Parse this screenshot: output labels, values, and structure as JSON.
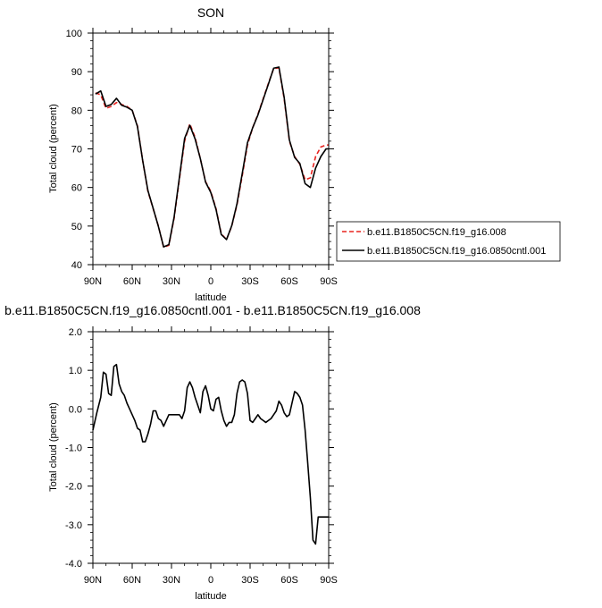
{
  "chart_data": [
    {
      "type": "line",
      "title": "SON",
      "xlabel": "latitude",
      "ylabel": "Total cloud (percent)",
      "xlim": [
        90,
        -90
      ],
      "ylim": [
        40,
        100
      ],
      "x_tick_values": [
        90,
        60,
        30,
        0,
        -30,
        -60,
        -90
      ],
      "x_tick_labels": [
        "90N",
        "60N",
        "30N",
        "0",
        "30S",
        "60S",
        "90S"
      ],
      "y_tick_values": [
        40,
        50,
        60,
        70,
        80,
        90,
        100
      ],
      "y_tick_labels": [
        "40",
        "50",
        "60",
        "70",
        "80",
        "90",
        "100"
      ],
      "legend_position": "right",
      "series": [
        {
          "name": "b.e11.B1850C5CN.f19_g16.008",
          "color": "#e8231f",
          "dash": "dashed",
          "x": [
            88,
            84,
            80,
            76,
            72,
            68,
            64,
            60,
            56,
            52,
            48,
            44,
            40,
            36,
            32,
            28,
            24,
            20,
            16,
            12,
            8,
            4,
            0,
            -4,
            -8,
            -12,
            -16,
            -20,
            -24,
            -28,
            -32,
            -36,
            -40,
            -44,
            -48,
            -52,
            -56,
            -60,
            -64,
            -68,
            -72,
            -76,
            -80,
            -84,
            -88,
            -90
          ],
          "y": [
            84.5,
            84,
            80.5,
            81,
            82,
            81.5,
            81,
            80,
            76,
            67,
            59,
            54.5,
            50,
            44.5,
            45,
            52,
            62,
            72,
            76.5,
            73,
            67.5,
            61.5,
            59,
            54.5,
            48,
            46.5,
            50,
            55.5,
            63,
            71,
            75.5,
            79,
            83,
            87,
            90.8,
            91,
            83,
            72,
            68,
            66,
            62,
            62.5,
            68,
            70.5,
            71,
            71
          ]
        },
        {
          "name": "b.e11.B1850C5CN.f19_g16.0850cntl.001",
          "color": "#000000",
          "dash": "solid",
          "x": [
            88,
            84,
            80,
            76,
            72,
            68,
            64,
            60,
            56,
            52,
            48,
            44,
            40,
            36,
            32,
            28,
            24,
            20,
            16,
            12,
            8,
            4,
            0,
            -4,
            -8,
            -12,
            -16,
            -20,
            -24,
            -28,
            -32,
            -36,
            -40,
            -44,
            -48,
            -52,
            -56,
            -60,
            -64,
            -68,
            -72,
            -76,
            -80,
            -84,
            -88,
            -90
          ],
          "y": [
            84.2,
            85,
            81,
            81.5,
            83.1,
            81.3,
            80.8,
            80,
            75.8,
            67,
            59.2,
            54.6,
            49.9,
            44.6,
            45.2,
            52.3,
            62.5,
            72.7,
            76.1,
            72.6,
            67.5,
            61.4,
            58.7,
            54.3,
            47.8,
            46.5,
            50.1,
            55.8,
            63.6,
            71.6,
            75.5,
            78.8,
            82.8,
            86.8,
            90.9,
            91.2,
            83.4,
            72.3,
            67.8,
            66.2,
            61,
            60,
            65,
            68,
            70,
            70
          ]
        }
      ]
    },
    {
      "type": "line",
      "title": "b.e11.B1850C5CN.f19_g16.0850cntl.001 - b.e11.B1850C5CN.f19_g16.008",
      "xlabel": "latitude",
      "ylabel": "Total cloud (percent)",
      "xlim": [
        90,
        -90
      ],
      "ylim": [
        -4,
        2
      ],
      "x_tick_values": [
        90,
        60,
        30,
        0,
        -30,
        -60,
        -90
      ],
      "x_tick_labels": [
        "90N",
        "60N",
        "30N",
        "0",
        "30S",
        "60S",
        "90S"
      ],
      "y_tick_values": [
        2,
        1,
        0,
        -1,
        -2,
        -3,
        -4
      ],
      "y_tick_labels": [
        "2.0",
        "1.0",
        "0.0",
        "-1.0",
        "-2.0",
        "-3.0",
        "-4.0"
      ],
      "series": [
        {
          "color": "#000000",
          "dash": "solid",
          "x": [
            90,
            87,
            84,
            82,
            80,
            78,
            76,
            74,
            72,
            70,
            68,
            66,
            64,
            62,
            60,
            58,
            56,
            54,
            52,
            50,
            48,
            46,
            44,
            42,
            40,
            38,
            36,
            34,
            32,
            30,
            28,
            26,
            24,
            22,
            20,
            18,
            16,
            14,
            12,
            10,
            8,
            6,
            4,
            2,
            0,
            -2,
            -4,
            -6,
            -8,
            -10,
            -12,
            -14,
            -16,
            -18,
            -20,
            -22,
            -24,
            -26,
            -28,
            -30,
            -32,
            -34,
            -36,
            -38,
            -40,
            -42,
            -44,
            -46,
            -48,
            -50,
            -52,
            -54,
            -56,
            -58,
            -60,
            -62,
            -64,
            -66,
            -68,
            -70,
            -72,
            -74,
            -76,
            -78,
            -80,
            -82,
            -84,
            -86,
            -88,
            -90
          ],
          "y": [
            -0.55,
            -0.1,
            0.3,
            0.95,
            0.9,
            0.4,
            0.35,
            1.1,
            1.15,
            0.65,
            0.45,
            0.35,
            0.15,
            0.0,
            -0.15,
            -0.3,
            -0.5,
            -0.55,
            -0.85,
            -0.85,
            -0.65,
            -0.4,
            -0.05,
            -0.05,
            -0.25,
            -0.3,
            -0.45,
            -0.3,
            -0.15,
            -0.15,
            -0.15,
            -0.15,
            -0.15,
            -0.25,
            -0.05,
            0.55,
            0.7,
            0.55,
            0.3,
            0.1,
            -0.1,
            0.45,
            0.6,
            0.35,
            0.0,
            -0.05,
            0.25,
            0.3,
            -0.05,
            -0.3,
            -0.45,
            -0.35,
            -0.35,
            -0.15,
            0.4,
            0.7,
            0.75,
            0.7,
            0.4,
            -0.3,
            -0.35,
            -0.25,
            -0.15,
            -0.25,
            -0.3,
            -0.35,
            -0.3,
            -0.25,
            -0.15,
            -0.05,
            0.2,
            0.1,
            -0.1,
            -0.2,
            -0.15,
            0.15,
            0.45,
            0.4,
            0.3,
            0.1,
            -0.55,
            -1.4,
            -2.3,
            -3.4,
            -3.5,
            -2.8,
            -2.8,
            -2.8,
            -2.8,
            -2.8
          ]
        }
      ]
    }
  ]
}
